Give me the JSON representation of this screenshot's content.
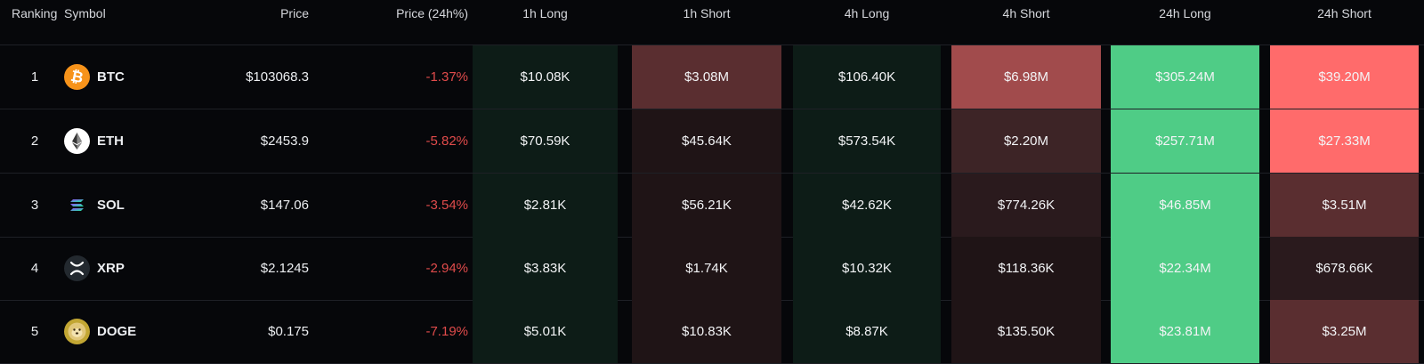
{
  "headers": {
    "ranking": "Ranking",
    "symbol": "Symbol",
    "price": "Price",
    "price_change": "Price (24h%)",
    "h1_long": "1h Long",
    "h1_short": "1h Short",
    "h4_long": "4h Long",
    "h4_short": "4h Short",
    "h24_long": "24h Long",
    "h24_short": "24h Short"
  },
  "rows": [
    {
      "rank": "1",
      "symbol": "BTC",
      "icon": "bitcoin-icon",
      "price": "$103068.3",
      "change": "-1.37%",
      "h1_long": "$10.08K",
      "h1_short": "$3.08M",
      "h4_long": "$106.40K",
      "h4_short": "$6.98M",
      "h24_long": "$305.24M",
      "h24_short": "$39.20M"
    },
    {
      "rank": "2",
      "symbol": "ETH",
      "icon": "ethereum-icon",
      "price": "$2453.9",
      "change": "-5.82%",
      "h1_long": "$70.59K",
      "h1_short": "$45.64K",
      "h4_long": "$573.54K",
      "h4_short": "$2.20M",
      "h24_long": "$257.71M",
      "h24_short": "$27.33M"
    },
    {
      "rank": "3",
      "symbol": "SOL",
      "icon": "solana-icon",
      "price": "$147.06",
      "change": "-3.54%",
      "h1_long": "$2.81K",
      "h1_short": "$56.21K",
      "h4_long": "$42.62K",
      "h4_short": "$774.26K",
      "h24_long": "$46.85M",
      "h24_short": "$3.51M"
    },
    {
      "rank": "4",
      "symbol": "XRP",
      "icon": "xrp-icon",
      "price": "$2.1245",
      "change": "-2.94%",
      "h1_long": "$3.83K",
      "h1_short": "$1.74K",
      "h4_long": "$10.32K",
      "h4_short": "$118.36K",
      "h24_long": "$22.34M",
      "h24_short": "$678.66K"
    },
    {
      "rank": "5",
      "symbol": "DOGE",
      "icon": "dogecoin-icon",
      "price": "$0.175",
      "change": "-7.19%",
      "h1_long": "$5.01K",
      "h1_short": "$10.83K",
      "h4_long": "$8.87K",
      "h4_short": "$135.50K",
      "h24_long": "$23.81M",
      "h24_short": "$3.25M"
    }
  ],
  "heat_colors": {
    "long_weak": "#0d1c17",
    "short_weak": "#1f1416",
    "short_low": "#2a1a1d",
    "short_mid": "#3d2426",
    "short_high": "#5a2e30",
    "short_strong": "#a14b4c",
    "short_max": "#ff6b6b",
    "long_max": "#4fcc86"
  }
}
